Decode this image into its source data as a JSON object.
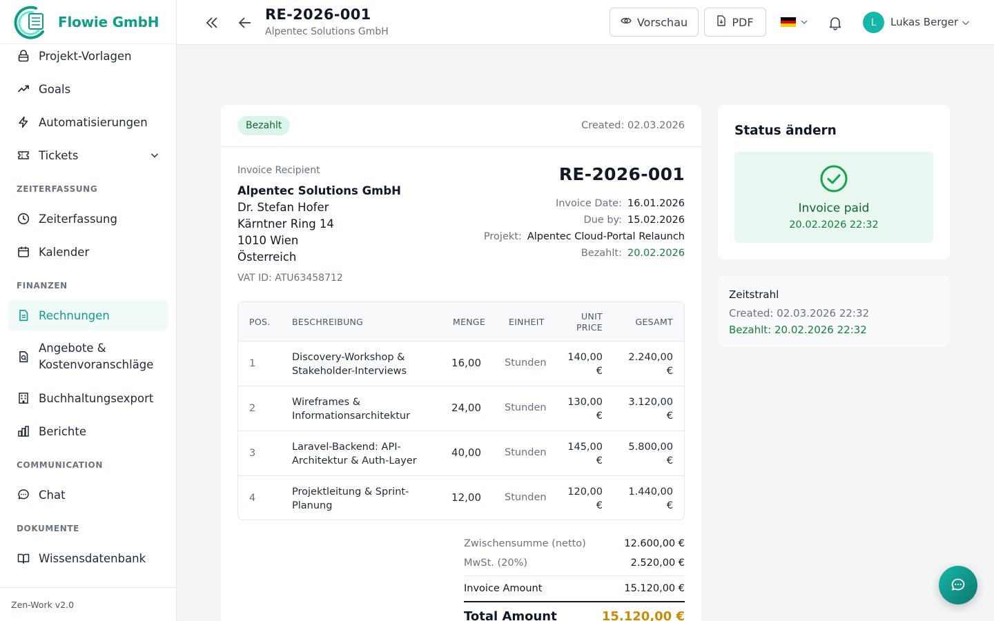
{
  "brand": {
    "name": "Flowie GmbH"
  },
  "sidebar": {
    "items_top": [
      {
        "label": "Projekt-Vorlagen",
        "icon": "lock-icon"
      },
      {
        "label": "Goals",
        "icon": "trend-up-icon"
      },
      {
        "label": "Automatisierungen",
        "icon": "lightning-icon"
      },
      {
        "label": "Tickets",
        "icon": "ticket-icon"
      }
    ],
    "sections": {
      "zeiterfassung": "ZEITERFASSUNG",
      "finanzen": "FINANZEN",
      "communication": "COMMUNICATION",
      "dokumente": "DOKUMENTE"
    },
    "zeit_items": [
      {
        "label": "Zeiterfassung",
        "icon": "clock-icon"
      },
      {
        "label": "Kalender",
        "icon": "calendar-icon"
      }
    ],
    "finanzen_items": [
      {
        "label": "Rechnungen",
        "icon": "document-icon"
      },
      {
        "label": "Angebote &",
        "label2": "Kostenvoranschläge",
        "icon": "offer-icon"
      },
      {
        "label": "Buchhaltungsexport",
        "icon": "building-icon"
      },
      {
        "label": "Berichte",
        "icon": "bar-chart-icon"
      }
    ],
    "comm_items": [
      {
        "label": "Chat",
        "icon": "chat-icon"
      }
    ],
    "doc_items": [
      {
        "label": "Wissensdatenbank",
        "icon": "book-icon"
      }
    ],
    "footer": "Zen-Work v2.0"
  },
  "header": {
    "title": "RE-2026-001",
    "subtitle": "Alpentec Solutions GmbH",
    "preview_label": "Vorschau",
    "pdf_label": "PDF",
    "user_initial": "L",
    "user_name": "Lukas Berger"
  },
  "invoice": {
    "status_badge": "Bezahlt",
    "created": "Created: 02.03.2026",
    "recipient_label": "Invoice Recipient",
    "recipient": {
      "company": "Alpentec Solutions GmbH",
      "contact": "Dr. Stefan Hofer",
      "street": "Kärntner Ring 14",
      "city": "1010 Wien",
      "country": "Österreich",
      "vat": "VAT ID: ATU63458712"
    },
    "number": "RE-2026-001",
    "meta": {
      "date_label": "Invoice Date:",
      "date_value": "16.01.2026",
      "due_label": "Due by:",
      "due_value": "15.02.2026",
      "project_label": "Projekt:",
      "project_value": "Alpentec Cloud-Portal Relaunch",
      "paid_label": "Bezahlt:",
      "paid_value": "20.02.2026"
    },
    "table": {
      "headers": {
        "pos": "POS.",
        "desc": "BESCHREIBUNG",
        "qty": "MENGE",
        "unit": "EINHEIT",
        "price1": "UNIT",
        "price2": "PRICE",
        "total": "GESAMT"
      },
      "rows": [
        {
          "pos": "1",
          "desc1": "Discovery-Workshop &",
          "desc2": "Stakeholder-Interviews",
          "qty": "16,00",
          "unit": "Stunden",
          "price": "140,00",
          "total": "2.240,00",
          "cur": "€"
        },
        {
          "pos": "2",
          "desc1": "Wireframes &",
          "desc2": "Informationsarchitektur",
          "qty": "24,00",
          "unit": "Stunden",
          "price": "130,00",
          "total": "3.120,00",
          "cur": "€"
        },
        {
          "pos": "3",
          "desc1": "Laravel-Backend: API-",
          "desc2": "Architektur & Auth-Layer",
          "qty": "40,00",
          "unit": "Stunden",
          "price": "145,00",
          "total": "5.800,00",
          "cur": "€"
        },
        {
          "pos": "4",
          "desc1": "Projektleitung & Sprint-",
          "desc2": "Planung",
          "qty": "12,00",
          "unit": "Stunden",
          "price": "120,00",
          "total": "1.440,00",
          "cur": "€"
        }
      ]
    },
    "totals": {
      "subtotal_label": "Zwischensumme (netto)",
      "subtotal_value": "12.600,00 €",
      "vat_label": "MwSt. (20%)",
      "vat_value": "2.520,00 €",
      "amount_label": "Invoice Amount",
      "amount_value": "15.120,00 €",
      "total_label": "Total Amount",
      "total_value": "15.120,00 €"
    }
  },
  "status_panel": {
    "title": "Status ändern",
    "paid_label": "Invoice paid",
    "paid_date": "20.02.2026 22:32"
  },
  "timeline": {
    "title": "Zeitstrahl",
    "created": "Created: 02.03.2026 22:32",
    "paid": "Bezahlt: 20.02.2026 22:32"
  },
  "colors": {
    "accent": "#0f9d8a",
    "paid_green": "#15803d",
    "total_gold": "#ca8a04"
  }
}
